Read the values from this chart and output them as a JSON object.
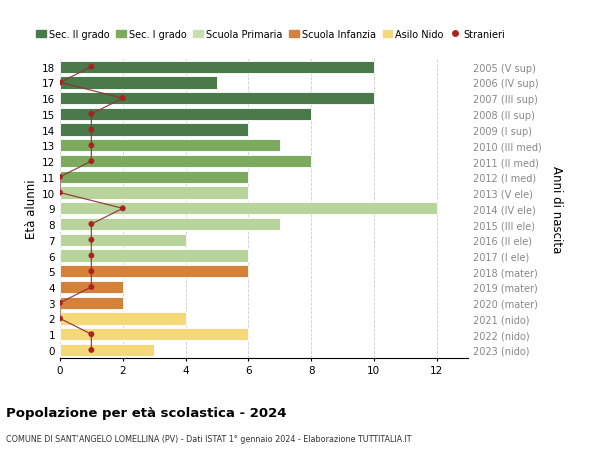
{
  "ages": [
    18,
    17,
    16,
    15,
    14,
    13,
    12,
    11,
    10,
    9,
    8,
    7,
    6,
    5,
    4,
    3,
    2,
    1,
    0
  ],
  "right_labels": [
    "2005 (V sup)",
    "2006 (IV sup)",
    "2007 (III sup)",
    "2008 (II sup)",
    "2009 (I sup)",
    "2010 (III med)",
    "2011 (II med)",
    "2012 (I med)",
    "2013 (V ele)",
    "2014 (IV ele)",
    "2015 (III ele)",
    "2016 (II ele)",
    "2017 (I ele)",
    "2018 (mater)",
    "2019 (mater)",
    "2020 (mater)",
    "2021 (nido)",
    "2022 (nido)",
    "2023 (nido)"
  ],
  "bar_values": [
    10,
    5,
    10,
    8,
    6,
    7,
    8,
    6,
    6,
    12,
    7,
    4,
    6,
    6,
    2,
    2,
    4,
    6,
    3
  ],
  "bar_colors": [
    "#4a7a4a",
    "#4a7a4a",
    "#4a7a4a",
    "#4a7a4a",
    "#4a7a4a",
    "#7dab5e",
    "#7dab5e",
    "#7dab5e",
    "#b8d49c",
    "#b8d49c",
    "#b8d49c",
    "#b8d49c",
    "#b8d49c",
    "#d4813a",
    "#d4813a",
    "#d4813a",
    "#f5d87a",
    "#f5d87a",
    "#f5d87a"
  ],
  "stranieri_values": [
    1,
    0,
    2,
    1,
    1,
    1,
    1,
    0,
    0,
    2,
    1,
    1,
    1,
    1,
    1,
    0,
    0,
    1,
    1
  ],
  "title": "Popolazione per età scolastica - 2024",
  "subtitle": "COMUNE DI SANT’ANGELO LOMELLINA (PV) - Dati ISTAT 1° gennaio 2024 - Elaborazione TUTTITALIA.IT",
  "ylabel_left": "Età alunni",
  "ylabel_right": "Anni di nascita",
  "xlim": [
    0,
    13
  ],
  "xticks": [
    0,
    2,
    4,
    6,
    8,
    10,
    12
  ],
  "legend_labels": [
    "Sec. II grado",
    "Sec. I grado",
    "Scuola Primaria",
    "Scuola Infanzia",
    "Asilo Nido",
    "Stranieri"
  ],
  "legend_colors": [
    "#4a7a4a",
    "#7dab5e",
    "#c8deb0",
    "#d4813a",
    "#f5d87a",
    "#aa2222"
  ],
  "stranieri_color": "#aa2222",
  "line_color": "#8b3333",
  "background_color": "#ffffff",
  "grid_color": "#cccccc"
}
